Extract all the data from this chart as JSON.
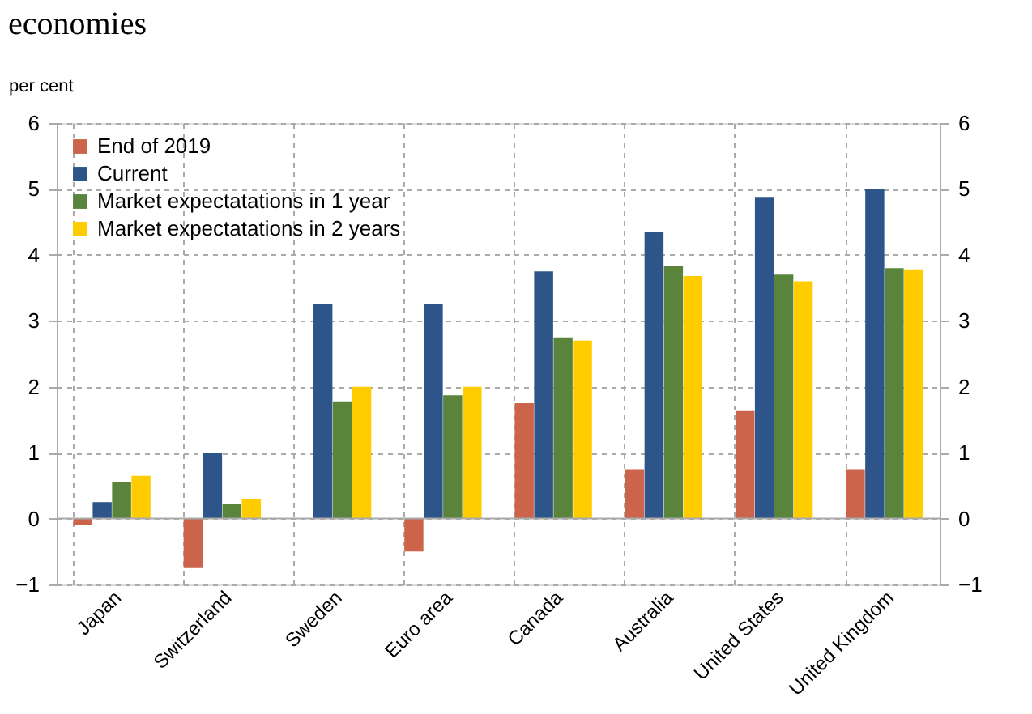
{
  "chart_data": {
    "type": "bar",
    "title": "economies",
    "ylabel": "per cent",
    "categories": [
      "Japan",
      "Switzerland",
      "Sweden",
      "Euro area",
      "Canada",
      "Australia",
      "United States",
      "United Kingdom"
    ],
    "series": [
      {
        "name": "End of 2019",
        "color": "#cc644c",
        "values": [
          -0.1,
          -0.75,
          0,
          -0.5,
          1.75,
          0.75,
          1.63,
          0.75
        ]
      },
      {
        "name": "Current",
        "color": "#2e5589",
        "values": [
          0.25,
          1.0,
          3.25,
          3.25,
          3.75,
          4.35,
          4.88,
          5.0
        ]
      },
      {
        "name": "Market expectatations in 1 year",
        "color": "#5a843c",
        "values": [
          0.55,
          0.22,
          1.78,
          1.87,
          2.75,
          3.83,
          3.7,
          3.8
        ]
      },
      {
        "name": "Market expectatations in 2 years",
        "color": "#ffcc00",
        "values": [
          0.65,
          0.3,
          2.0,
          2.0,
          2.7,
          3.68,
          3.6,
          3.78
        ]
      }
    ],
    "ylim": [
      -1,
      6
    ],
    "yticks": [
      -1,
      0,
      1,
      2,
      3,
      4,
      5,
      6
    ],
    "y2lim": [
      -1,
      6
    ],
    "y2ticks": [
      -1,
      0,
      1,
      2,
      3,
      4,
      5,
      6
    ],
    "grid": true,
    "legend": "top left"
  }
}
